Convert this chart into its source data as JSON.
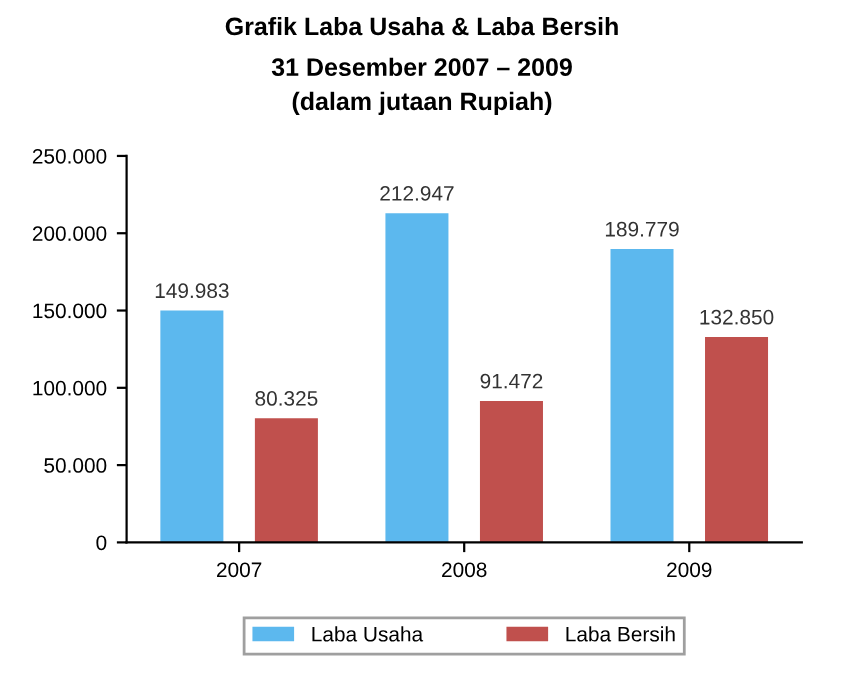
{
  "chart_data": {
    "type": "bar",
    "title": "Grafik Laba Usaha & Laba Bersih",
    "subtitle": "31 Desember 2007 – 2009\n(dalam jutaan Rupiah)",
    "categories": [
      "2007",
      "2008",
      "2009"
    ],
    "series": [
      {
        "name": "Laba Usaha",
        "color": "#5cb8ee",
        "values": [
          149983,
          212947,
          189779
        ],
        "value_labels": [
          "149.983",
          "212.947",
          "189.779"
        ]
      },
      {
        "name": "Laba Bersih",
        "color": "#c0504d",
        "values": [
          80325,
          91472,
          132850
        ],
        "value_labels": [
          "80.325",
          "91.472",
          "132.850"
        ]
      }
    ],
    "ylim": [
      0,
      250000
    ],
    "yticks": [
      0,
      {
        "value": 50000,
        "label": "50.000"
      },
      {
        "value": 100000,
        "label": "100.000"
      },
      {
        "value": 150000,
        "label": "150.000"
      },
      {
        "value": 200000,
        "label": "200.000"
      },
      {
        "value": 250000,
        "label": "250.000"
      }
    ],
    "grid": false,
    "legend": "bottom"
  }
}
